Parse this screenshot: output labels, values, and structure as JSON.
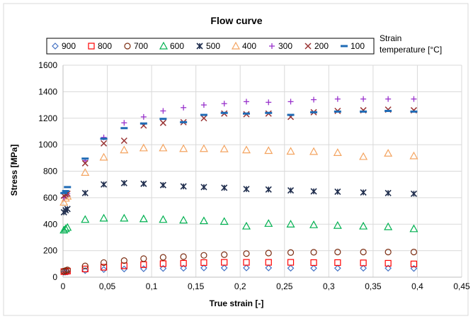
{
  "chart_data": {
    "type": "scatter",
    "title": "Flow curve",
    "xlabel": "True strain [-]",
    "ylabel": "Stress [MPa]",
    "legend_title": [
      "Strain",
      "temperature [°C]"
    ],
    "legend_position": "top",
    "grid": true,
    "xlim": [
      0,
      0.45
    ],
    "ylim": [
      0,
      1600
    ],
    "x_ticks": [
      "0",
      "0,05",
      "0,1",
      "0,15",
      "0,2",
      "0,25",
      "0,3",
      "0,35",
      "0,4",
      "0,45"
    ],
    "y_ticks": [
      "0",
      "200",
      "400",
      "600",
      "800",
      "1000",
      "1200",
      "1400",
      "1600"
    ],
    "x": [
      0.001,
      0.003,
      0.005,
      0.025,
      0.046,
      0.069,
      0.091,
      0.113,
      0.136,
      0.159,
      0.182,
      0.207,
      0.232,
      0.257,
      0.283,
      0.31,
      0.339,
      0.367,
      0.396
    ],
    "series": [
      {
        "name": "900",
        "marker": "diamond",
        "color": "#4472c4",
        "values": [
          37,
          38,
          40,
          50,
          58,
          62,
          64,
          66,
          68,
          70,
          70,
          70,
          70,
          68,
          68,
          68,
          68,
          68,
          66
        ]
      },
      {
        "name": "800",
        "marker": "square",
        "color": "#ff0000",
        "values": [
          42,
          44,
          46,
          62,
          75,
          86,
          95,
          102,
          105,
          110,
          112,
          112,
          112,
          112,
          110,
          110,
          108,
          105,
          100
        ]
      },
      {
        "name": "700",
        "marker": "circle",
        "color": "#7b2c10",
        "values": [
          45,
          50,
          55,
          85,
          110,
          125,
          140,
          150,
          155,
          165,
          170,
          178,
          182,
          186,
          188,
          190,
          190,
          190,
          190
        ]
      },
      {
        "name": "600",
        "marker": "triangle",
        "color": "#00b050",
        "values": [
          355,
          365,
          375,
          435,
          445,
          445,
          440,
          435,
          430,
          425,
          420,
          385,
          405,
          400,
          395,
          390,
          385,
          380,
          365
        ]
      },
      {
        "name": "500",
        "marker": "star",
        "color": "#1f2d4d",
        "values": [
          490,
          505,
          515,
          635,
          700,
          710,
          705,
          695,
          685,
          680,
          675,
          665,
          662,
          655,
          648,
          645,
          640,
          635,
          630
        ]
      },
      {
        "name": "400",
        "marker": "triangle",
        "color": "#f4a460",
        "values": [
          565,
          595,
          610,
          790,
          905,
          960,
          975,
          975,
          970,
          970,
          968,
          960,
          955,
          950,
          948,
          940,
          910,
          935,
          915
        ]
      },
      {
        "name": "300",
        "marker": "plus",
        "color": "#9933cc",
        "values": [
          600,
          615,
          630,
          880,
          1055,
          1165,
          1210,
          1255,
          1280,
          1300,
          1310,
          1325,
          1320,
          1325,
          1340,
          1345,
          1345,
          1345,
          1345
        ]
      },
      {
        "name": "200",
        "marker": "x",
        "color": "#993333",
        "values": [
          615,
          625,
          630,
          860,
          1010,
          1030,
          1145,
          1165,
          1170,
          1200,
          1235,
          1230,
          1235,
          1210,
          1245,
          1255,
          1260,
          1265,
          1260
        ]
      },
      {
        "name": "100",
        "marker": "dash",
        "color": "#1f6bb5",
        "values": [
          635,
          650,
          680,
          895,
          1045,
          1125,
          1160,
          1195,
          1170,
          1225,
          1240,
          1235,
          1240,
          1225,
          1245,
          1250,
          1250,
          1255,
          1250
        ]
      }
    ]
  }
}
